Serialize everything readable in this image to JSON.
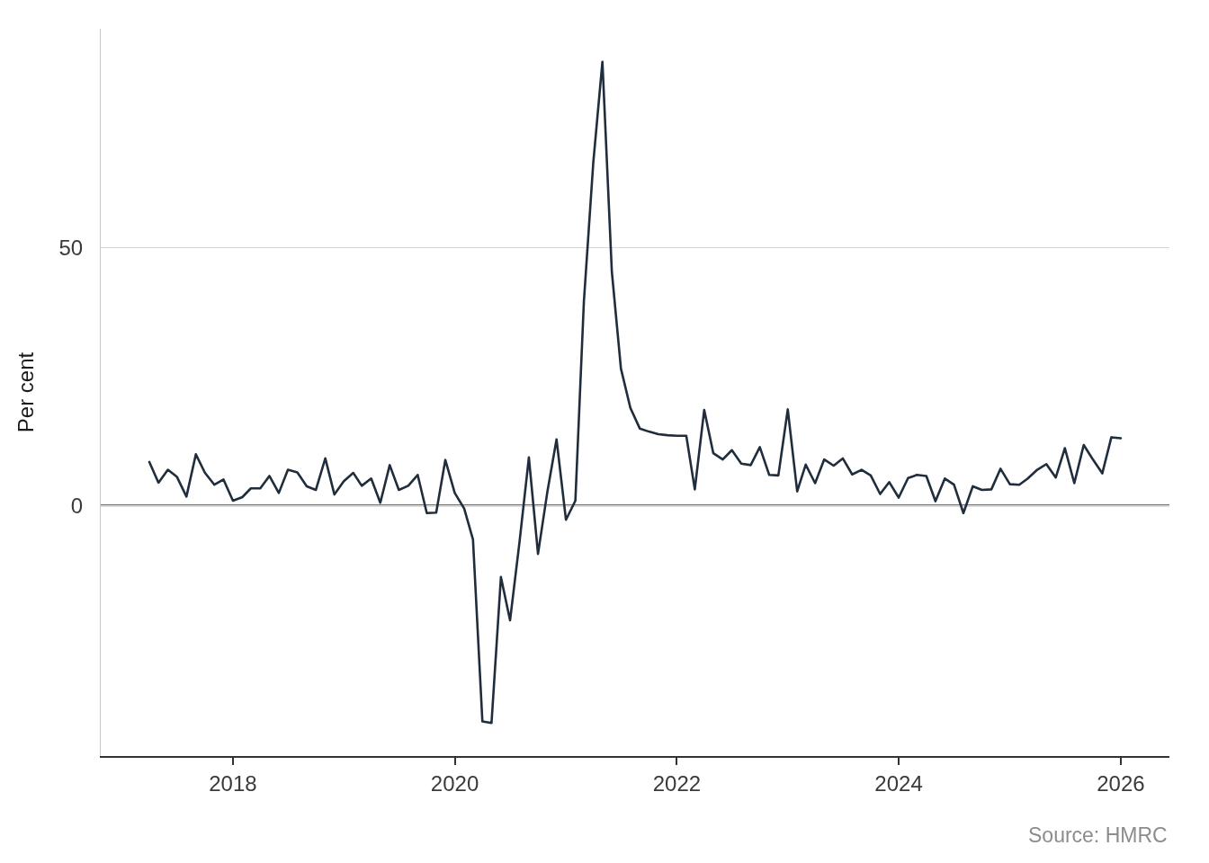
{
  "chart_data": {
    "type": "line",
    "ylabel": "Per cent",
    "annotations": [
      "Source: HMRC"
    ],
    "x": [
      "2017-04",
      "2017-05",
      "2017-06",
      "2017-07",
      "2017-08",
      "2017-09",
      "2017-10",
      "2017-11",
      "2017-12",
      "2018-01",
      "2018-02",
      "2018-03",
      "2018-04",
      "2018-05",
      "2018-06",
      "2018-07",
      "2018-08",
      "2018-09",
      "2018-10",
      "2018-11",
      "2018-12",
      "2019-01",
      "2019-02",
      "2019-03",
      "2019-04",
      "2019-05",
      "2019-06",
      "2019-07",
      "2019-08",
      "2019-09",
      "2019-10",
      "2019-11",
      "2019-12",
      "2020-01",
      "2020-02",
      "2020-03",
      "2020-04",
      "2020-05",
      "2020-06",
      "2020-07",
      "2020-08",
      "2020-09",
      "2020-10",
      "2020-11",
      "2020-12",
      "2021-01",
      "2021-02",
      "2021-03",
      "2021-04",
      "2021-05",
      "2021-06",
      "2021-07",
      "2021-08",
      "2021-09",
      "2021-10",
      "2021-11",
      "2021-12",
      "2022-01",
      "2022-02",
      "2022-03",
      "2022-04",
      "2022-05",
      "2022-06",
      "2022-07",
      "2022-08",
      "2022-09",
      "2022-10",
      "2022-11",
      "2022-12",
      "2023-01",
      "2023-02",
      "2023-03",
      "2023-04",
      "2023-05",
      "2023-06",
      "2023-07",
      "2023-08",
      "2023-09",
      "2023-10",
      "2023-11",
      "2023-12",
      "2024-01",
      "2024-02",
      "2024-03",
      "2024-04",
      "2024-05",
      "2024-06",
      "2024-07",
      "2024-08",
      "2024-09",
      "2024-10",
      "2024-11",
      "2024-12",
      "2025-01",
      "2025-02",
      "2025-03",
      "2025-04",
      "2025-05",
      "2025-06",
      "2025-07",
      "2025-08",
      "2025-09",
      "2025-10",
      "2025-11",
      "2025-12",
      "2026-01"
    ],
    "series": [
      {
        "color": "#1f2d3d",
        "values": [
          8.4,
          4.4,
          6.9,
          5.5,
          1.7,
          9.9,
          6.3,
          4.0,
          5.0,
          0.9,
          1.6,
          3.3,
          3.3,
          5.7,
          2.4,
          6.9,
          6.4,
          3.7,
          3.0,
          9.1,
          2.1,
          4.7,
          6.3,
          3.8,
          5.2,
          0.5,
          7.8,
          3.0,
          3.8,
          5.9,
          -1.5,
          -1.4,
          8.8,
          2.4,
          -0.6,
          -6.6,
          -41.9,
          -42.2,
          -13.9,
          -22.3,
          -7.2,
          9.3,
          -9.4,
          2.7,
          12.8,
          -2.8,
          0.9,
          39.5,
          66.5,
          86.0,
          45.3,
          26.5,
          18.9,
          14.9,
          14.3,
          13.8,
          13.6,
          13.5,
          13.5,
          3.1,
          18.5,
          10.1,
          8.9,
          10.7,
          8.1,
          7.8,
          11.3,
          5.9,
          5.8,
          18.6,
          2.7,
          7.9,
          4.3,
          8.9,
          7.7,
          9.1,
          6.0,
          6.9,
          5.8,
          2.2,
          4.5,
          1.5,
          5.3,
          5.9,
          5.7,
          0.8,
          5.2,
          4.0,
          -1.5,
          3.7,
          3.0,
          3.1,
          7.1,
          4.1,
          4.0,
          5.2,
          6.9,
          8.0,
          5.4,
          11.1,
          4.3,
          11.7,
          8.9,
          6.2,
          13.2,
          13.0
        ]
      }
    ],
    "xlim": [
      "2016-10-23",
      "2026-06-10"
    ],
    "xticks": [
      "2018",
      "2020",
      "2022",
      "2024",
      "2026"
    ],
    "ylim": [
      -48.6,
      92.4
    ],
    "yticks": [
      0,
      50
    ],
    "grid": "y",
    "ref_lines": [
      {
        "axis": "y",
        "value": 0,
        "color": "#737373"
      }
    ]
  }
}
